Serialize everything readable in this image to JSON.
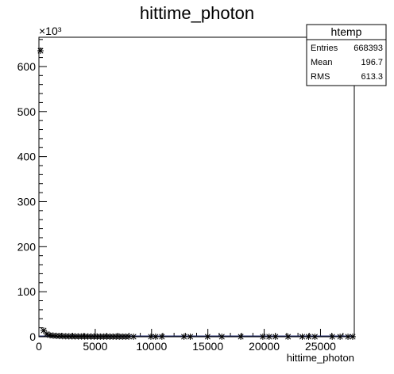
{
  "chart_data": {
    "type": "scatter",
    "title": "hittime_photon",
    "xlabel": "hittime_photon",
    "ylabel": "",
    "xlim": [
      0,
      28000
    ],
    "ylim": [
      0,
      665000
    ],
    "x_ticks": [
      0,
      5000,
      10000,
      15000,
      20000,
      25000
    ],
    "y_ticks": [
      0,
      100,
      200,
      300,
      400,
      500,
      600
    ],
    "y_multiplier": "×10³",
    "grid": false,
    "marker": "asterisk",
    "points": [
      [
        140,
        635000
      ],
      [
        420,
        14000
      ],
      [
        700,
        6000
      ],
      [
        980,
        3500
      ],
      [
        1260,
        2500
      ],
      [
        1540,
        2000
      ],
      [
        1820,
        1600
      ],
      [
        2100,
        1300
      ],
      [
        2380,
        1100
      ],
      [
        2660,
        950
      ],
      [
        2940,
        850
      ],
      [
        3220,
        750
      ],
      [
        3500,
        650
      ],
      [
        3780,
        600
      ],
      [
        4060,
        550
      ],
      [
        4340,
        500
      ],
      [
        4620,
        450
      ],
      [
        4900,
        420
      ],
      [
        5180,
        400
      ],
      [
        5460,
        380
      ],
      [
        5740,
        350
      ],
      [
        6020,
        330
      ],
      [
        6300,
        310
      ],
      [
        6580,
        300
      ],
      [
        6860,
        280
      ],
      [
        7140,
        260
      ],
      [
        7420,
        250
      ],
      [
        7700,
        240
      ],
      [
        7980,
        230
      ],
      [
        8400,
        200
      ],
      [
        9940,
        180
      ],
      [
        10360,
        170
      ],
      [
        10920,
        160
      ],
      [
        12880,
        150
      ],
      [
        13440,
        140
      ],
      [
        14980,
        130
      ],
      [
        16240,
        120
      ],
      [
        17920,
        110
      ],
      [
        19880,
        100
      ],
      [
        20440,
        90
      ],
      [
        21000,
        85
      ],
      [
        22120,
        80
      ],
      [
        23380,
        75
      ],
      [
        23940,
        70
      ],
      [
        24500,
        65
      ],
      [
        26040,
        60
      ],
      [
        26740,
        55
      ],
      [
        27440,
        50
      ],
      [
        27860,
        45
      ]
    ],
    "stats": {
      "name": "htemp",
      "rows": [
        {
          "label": "Entries",
          "value": "668393"
        },
        {
          "label": "Mean",
          "value": "196.7"
        },
        {
          "label": "RMS",
          "value": "613.3"
        }
      ]
    }
  }
}
